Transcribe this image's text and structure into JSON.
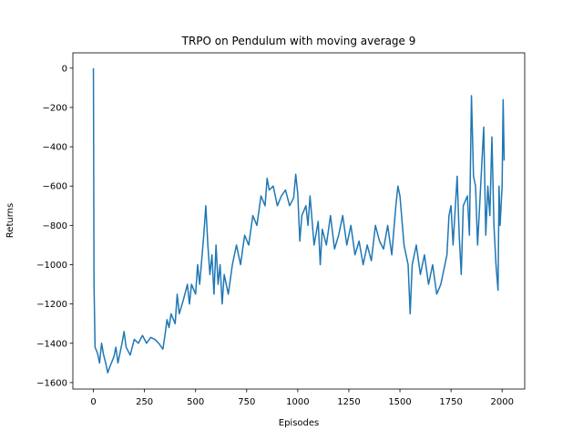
{
  "chart_data": {
    "type": "line",
    "title": "TRPO on Pendulum with moving average 9",
    "x_label": "Episodes",
    "y_label": "Returns",
    "series": [
      {
        "name": "Returns",
        "color": "#1f77b4",
        "x": [
          0,
          3,
          8,
          20,
          30,
          40,
          50,
          60,
          70,
          80,
          100,
          110,
          120,
          140,
          150,
          160,
          180,
          200,
          220,
          240,
          260,
          280,
          300,
          320,
          340,
          350,
          360,
          370,
          380,
          400,
          410,
          420,
          440,
          460,
          470,
          480,
          500,
          510,
          520,
          540,
          550,
          560,
          570,
          580,
          590,
          600,
          610,
          620,
          630,
          640,
          660,
          680,
          700,
          720,
          740,
          760,
          780,
          800,
          820,
          840,
          850,
          860,
          880,
          900,
          920,
          940,
          960,
          980,
          990,
          1000,
          1010,
          1020,
          1040,
          1050,
          1060,
          1080,
          1100,
          1110,
          1120,
          1140,
          1160,
          1180,
          1200,
          1220,
          1240,
          1260,
          1280,
          1300,
          1320,
          1340,
          1360,
          1380,
          1400,
          1420,
          1440,
          1460,
          1480,
          1490,
          1500,
          1520,
          1540,
          1550,
          1560,
          1580,
          1600,
          1620,
          1640,
          1660,
          1680,
          1700,
          1720,
          1730,
          1740,
          1750,
          1760,
          1780,
          1790,
          1800,
          1810,
          1830,
          1840,
          1850,
          1860,
          1870,
          1880,
          1900,
          1910,
          1920,
          1930,
          1940,
          1950,
          1960,
          1970,
          1980,
          1985,
          1990,
          2000,
          2005,
          2010
        ],
        "values": [
          0,
          -1100,
          -1420,
          -1450,
          -1500,
          -1400,
          -1460,
          -1500,
          -1550,
          -1520,
          -1470,
          -1420,
          -1500,
          -1400,
          -1340,
          -1420,
          -1460,
          -1380,
          -1400,
          -1360,
          -1400,
          -1370,
          -1380,
          -1400,
          -1430,
          -1360,
          -1280,
          -1320,
          -1250,
          -1300,
          -1150,
          -1250,
          -1180,
          -1100,
          -1200,
          -1100,
          -1150,
          -1000,
          -1100,
          -850,
          -700,
          -900,
          -1050,
          -950,
          -1150,
          -900,
          -1100,
          -1000,
          -1200,
          -1050,
          -1150,
          -1000,
          -900,
          -1000,
          -850,
          -900,
          -750,
          -800,
          -650,
          -700,
          -560,
          -620,
          -600,
          -700,
          -650,
          -620,
          -700,
          -660,
          -540,
          -640,
          -880,
          -750,
          -700,
          -800,
          -650,
          -900,
          -780,
          -1000,
          -820,
          -900,
          -750,
          -920,
          -850,
          -750,
          -900,
          -800,
          -950,
          -880,
          -1000,
          -900,
          -980,
          -800,
          -880,
          -920,
          -800,
          -950,
          -700,
          -600,
          -650,
          -900,
          -1000,
          -1250,
          -1000,
          -900,
          -1050,
          -950,
          -1100,
          -1000,
          -1150,
          -1100,
          -1000,
          -950,
          -750,
          -700,
          -900,
          -550,
          -850,
          -1050,
          -700,
          -650,
          -850,
          -140,
          -550,
          -600,
          -900,
          -500,
          -300,
          -850,
          -600,
          -750,
          -350,
          -800,
          -1000,
          -1130,
          -600,
          -800,
          -600,
          -160,
          -470
        ]
      }
    ],
    "xlim": [
      -100.5,
      2110.5
    ],
    "ylim": [
      -1633,
      78
    ],
    "xticks": [
      0,
      250,
      500,
      750,
      1000,
      1250,
      1500,
      1750,
      2000
    ],
    "yticks": [
      {
        "value": -1600,
        "label": "−1600"
      },
      {
        "value": -1400,
        "label": "−1400"
      },
      {
        "value": -1200,
        "label": "−1200"
      },
      {
        "value": -1000,
        "label": "−1000"
      },
      {
        "value": -800,
        "label": "−800"
      },
      {
        "value": -600,
        "label": "−600"
      },
      {
        "value": -400,
        "label": "−400"
      },
      {
        "value": -200,
        "label": "−200"
      },
      0
    ]
  }
}
